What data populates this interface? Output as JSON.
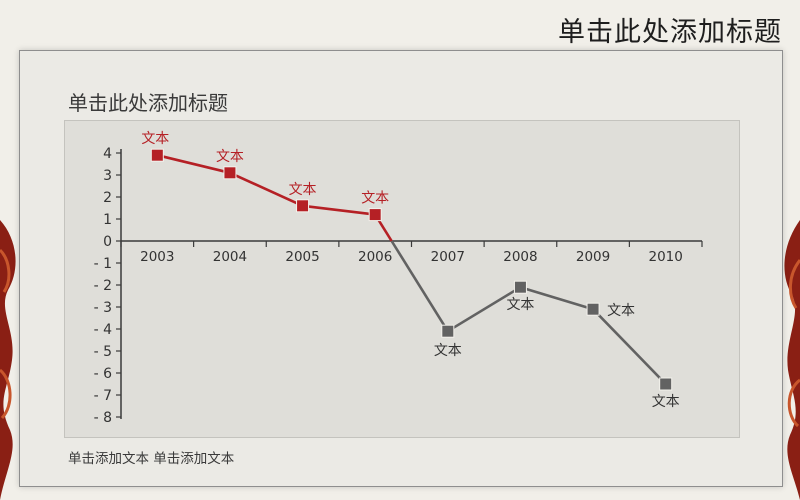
{
  "slide": {
    "title": "单击此处添加标题",
    "footer": "单击添加文本 单击添加文本"
  },
  "colors": {
    "positive": "#b52025",
    "negative": "#626262",
    "axis": "#3a3a3a",
    "decoration": "#8a1f14"
  },
  "chart_data": {
    "type": "line",
    "title": "单击此处添加标题",
    "categories": [
      "2003",
      "2004",
      "2005",
      "2006",
      "2007",
      "2008",
      "2009",
      "2010"
    ],
    "values": [
      3.9,
      3.1,
      1.6,
      1.2,
      -4.1,
      -2.1,
      -3.1,
      -6.5
    ],
    "data_labels": [
      "文本",
      "文本",
      "文本",
      "文本",
      "文本",
      "文本",
      "文本",
      "文本"
    ],
    "yticks": [
      "4",
      "3",
      "2",
      "1",
      "0",
      "- 1",
      "- 2",
      "- 3",
      "- 4",
      "- 5",
      "- 6",
      "- 7",
      "- 8"
    ],
    "ylim": [
      -8,
      4
    ],
    "xlabel": "",
    "ylabel": "",
    "grid": false,
    "legend": "none"
  }
}
